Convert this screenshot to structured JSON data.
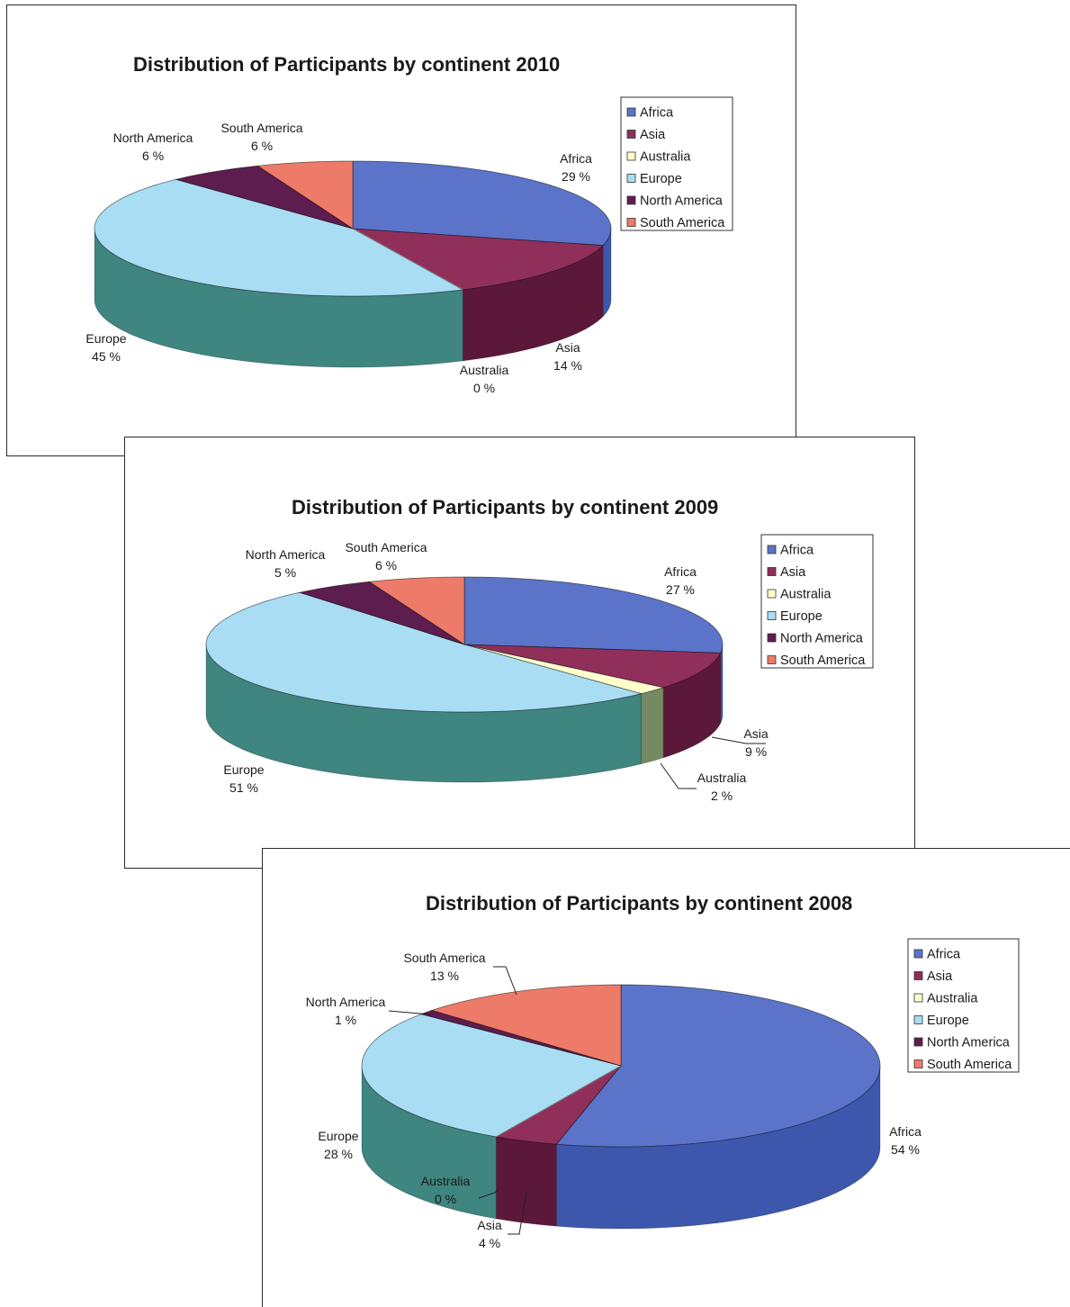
{
  "colors": {
    "Africa": "#5b74c9",
    "Asia": "#8f2f5a",
    "Australia": "#ffffcc",
    "Europe": "#a9ddf3",
    "North America": "#5e1d4f",
    "South America": "#ee7b69"
  },
  "legend_items": [
    "Africa",
    "Asia",
    "Australia",
    "Europe",
    "North America",
    "South America"
  ],
  "chart_data": [
    {
      "type": "pie",
      "title": "Distribution of Participants by continent 2010",
      "categories": [
        "Africa",
        "Asia",
        "Australia",
        "Europe",
        "North America",
        "South America"
      ],
      "values": [
        29,
        14,
        0,
        45,
        6,
        6
      ],
      "labels": [
        {
          "category": "Africa",
          "pct": "29 %"
        },
        {
          "category": "Asia",
          "pct": "14 %"
        },
        {
          "category": "Australia",
          "pct": "0 %"
        },
        {
          "category": "Europe",
          "pct": "45 %"
        },
        {
          "category": "North America",
          "pct": "6 %"
        },
        {
          "category": "South America",
          "pct": "6 %"
        }
      ],
      "style": "3d",
      "legend": "right"
    },
    {
      "type": "pie",
      "title": "Distribution of Participants by continent 2009",
      "categories": [
        "Africa",
        "Asia",
        "Australia",
        "Europe",
        "North America",
        "South America"
      ],
      "values": [
        27,
        9,
        2,
        51,
        5,
        6
      ],
      "labels": [
        {
          "category": "Africa",
          "pct": "27 %"
        },
        {
          "category": "Asia",
          "pct": "9 %"
        },
        {
          "category": "Australia",
          "pct": "2 %"
        },
        {
          "category": "Europe",
          "pct": "51 %"
        },
        {
          "category": "North America",
          "pct": "5 %"
        },
        {
          "category": "South America",
          "pct": "6 %"
        }
      ],
      "style": "3d",
      "legend": "right"
    },
    {
      "type": "pie",
      "title": "Distribution of Participants by continent 2008",
      "categories": [
        "Africa",
        "Asia",
        "Australia",
        "Europe",
        "North America",
        "South America"
      ],
      "values": [
        54,
        4,
        0,
        28,
        1,
        13
      ],
      "labels": [
        {
          "category": "Africa",
          "pct": "54 %"
        },
        {
          "category": "Asia",
          "pct": "4 %"
        },
        {
          "category": "Australia",
          "pct": "0 %"
        },
        {
          "category": "Europe",
          "pct": "28 %"
        },
        {
          "category": "North America",
          "pct": "1 %"
        },
        {
          "category": "South America",
          "pct": "13 %"
        }
      ],
      "style": "3d",
      "legend": "right"
    }
  ]
}
